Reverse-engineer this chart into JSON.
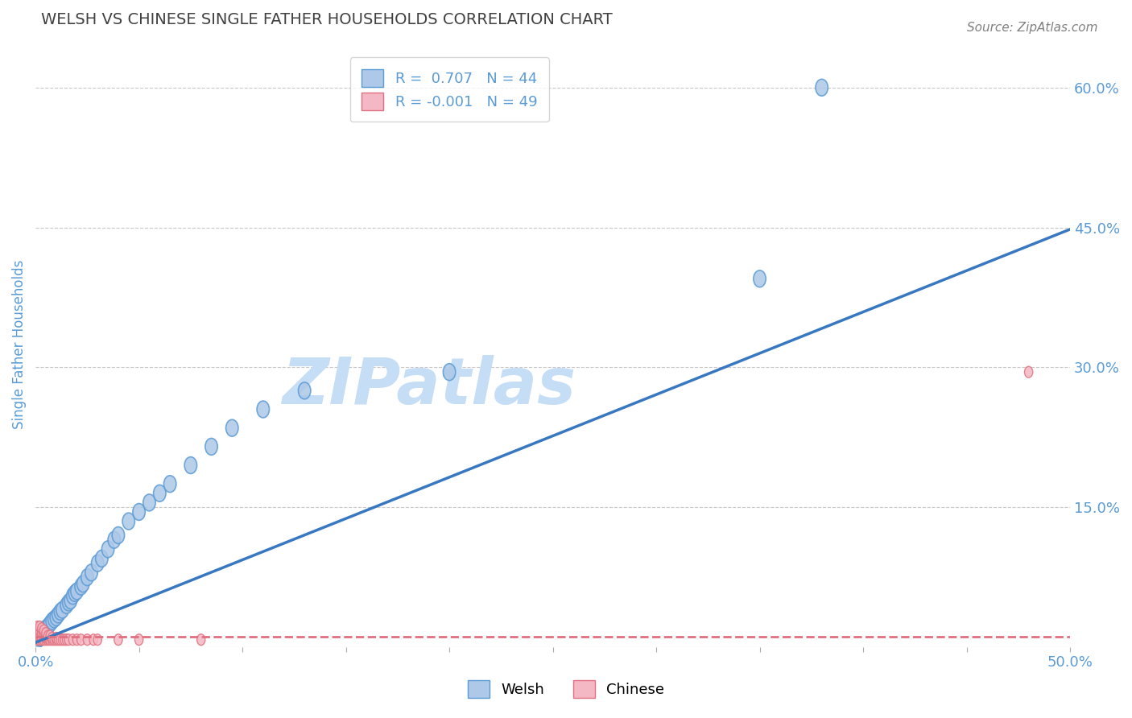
{
  "title": "WELSH VS CHINESE SINGLE FATHER HOUSEHOLDS CORRELATION CHART",
  "source_text": "Source: ZipAtlas.com",
  "ylabel": "Single Father Households",
  "xlim": [
    0.0,
    0.5
  ],
  "ylim": [
    0.0,
    0.65
  ],
  "xticks": [
    0.0,
    0.05,
    0.1,
    0.15,
    0.2,
    0.25,
    0.3,
    0.35,
    0.4,
    0.45,
    0.5
  ],
  "yticks_right": [
    0.0,
    0.15,
    0.3,
    0.45,
    0.6
  ],
  "ytick_labels_right": [
    "",
    "15.0%",
    "30.0%",
    "45.0%",
    "60.0%"
  ],
  "welsh_color": "#adc8e8",
  "welsh_edge_color": "#5b9bd5",
  "chinese_color": "#f4b8c4",
  "chinese_edge_color": "#e07080",
  "trend_welsh_color": "#3878c0",
  "trend_chinese_color": "#e07080",
  "welsh_R": 0.707,
  "welsh_N": 44,
  "chinese_R": -0.001,
  "chinese_N": 49,
  "welsh_points_x": [
    0.001,
    0.001,
    0.002,
    0.002,
    0.003,
    0.003,
    0.004,
    0.005,
    0.006,
    0.007,
    0.008,
    0.009,
    0.01,
    0.011,
    0.012,
    0.013,
    0.015,
    0.016,
    0.017,
    0.018,
    0.019,
    0.02,
    0.022,
    0.023,
    0.025,
    0.027,
    0.03,
    0.032,
    0.035,
    0.038,
    0.04,
    0.045,
    0.05,
    0.055,
    0.06,
    0.065,
    0.075,
    0.085,
    0.095,
    0.11,
    0.13,
    0.2,
    0.35,
    0.38
  ],
  "welsh_points_y": [
    0.008,
    0.012,
    0.01,
    0.015,
    0.012,
    0.018,
    0.015,
    0.02,
    0.022,
    0.025,
    0.028,
    0.03,
    0.032,
    0.035,
    0.038,
    0.04,
    0.045,
    0.048,
    0.05,
    0.055,
    0.058,
    0.06,
    0.065,
    0.068,
    0.075,
    0.08,
    0.09,
    0.095,
    0.105,
    0.115,
    0.12,
    0.135,
    0.145,
    0.155,
    0.165,
    0.175,
    0.195,
    0.215,
    0.235,
    0.255,
    0.275,
    0.295,
    0.395,
    0.6
  ],
  "welsh_trend_x": [
    0.0,
    0.5
  ],
  "welsh_trend_y": [
    0.005,
    0.448
  ],
  "chinese_points_x": [
    0.001,
    0.001,
    0.001,
    0.001,
    0.001,
    0.001,
    0.002,
    0.002,
    0.002,
    0.002,
    0.002,
    0.003,
    0.003,
    0.003,
    0.003,
    0.004,
    0.004,
    0.004,
    0.004,
    0.005,
    0.005,
    0.005,
    0.005,
    0.006,
    0.006,
    0.006,
    0.007,
    0.007,
    0.008,
    0.008,
    0.009,
    0.01,
    0.01,
    0.011,
    0.012,
    0.013,
    0.014,
    0.015,
    0.016,
    0.018,
    0.02,
    0.022,
    0.025,
    0.028,
    0.03,
    0.04,
    0.05,
    0.08,
    0.48
  ],
  "chinese_points_y": [
    0.008,
    0.01,
    0.012,
    0.015,
    0.018,
    0.022,
    0.008,
    0.012,
    0.015,
    0.018,
    0.022,
    0.008,
    0.01,
    0.015,
    0.02,
    0.008,
    0.012,
    0.015,
    0.018,
    0.008,
    0.01,
    0.012,
    0.015,
    0.008,
    0.01,
    0.012,
    0.008,
    0.012,
    0.008,
    0.01,
    0.008,
    0.008,
    0.01,
    0.008,
    0.008,
    0.008,
    0.008,
    0.008,
    0.008,
    0.008,
    0.008,
    0.008,
    0.008,
    0.008,
    0.008,
    0.008,
    0.008,
    0.008,
    0.295
  ],
  "chinese_trend_y": [
    0.011,
    0.011
  ],
  "background_color": "#ffffff",
  "grid_color": "#c8c8c8",
  "watermark_text": "ZIPatlas",
  "watermark_color": "#c5ddf5",
  "title_color": "#404040",
  "source_color": "#808080",
  "tick_color": "#5b9bd5"
}
